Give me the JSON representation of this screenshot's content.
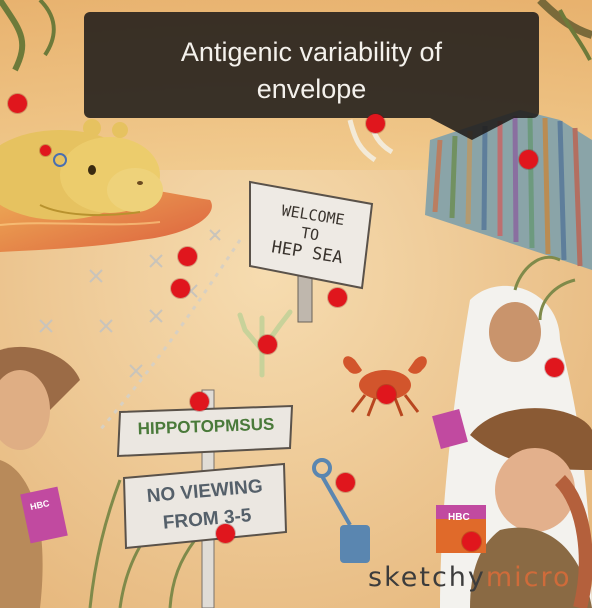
{
  "tooltip": {
    "text": "Antigenic variability of envelope"
  },
  "signs": {
    "welcome": [
      "WELCOME",
      "TO",
      "HEP SEA"
    ],
    "hippo_title": "HIPPOTOPMSUS",
    "viewing": [
      "NO VIEWING",
      "FROM 3-5"
    ]
  },
  "juice_label": "HBC",
  "brand": {
    "part1": "sketchy",
    "part2": "micro"
  },
  "hotspot_color": "#e0161d"
}
